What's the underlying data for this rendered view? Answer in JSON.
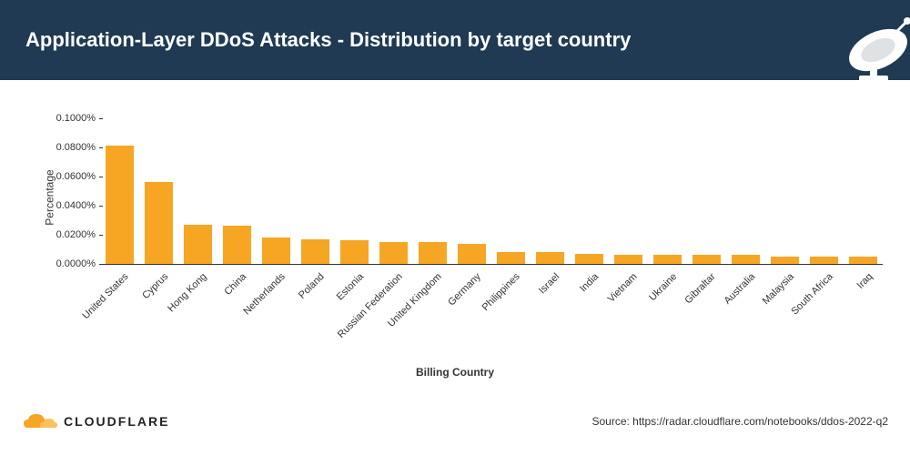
{
  "header": {
    "title": "Application-Layer DDoS Attacks - Distribution by target country",
    "background_color": "#1f3a52",
    "title_color": "#ffffff",
    "title_fontsize": 22
  },
  "chart": {
    "type": "bar",
    "y_axis_label": "Percentage",
    "x_axis_label": "Billing Country",
    "x_axis_fontweight": 600,
    "label_fontsize": 12,
    "tick_fontsize": 11,
    "x_tick_rotation_deg": -45,
    "bar_color": "#f6a623",
    "background_color": "#ffffff",
    "axis_color": "#333333",
    "tick_color": "#333333",
    "ylim": [
      0,
      0.1
    ],
    "ytick_step": 0.02,
    "y_ticks": [
      {
        "value": 0.0,
        "label": "0.0000%"
      },
      {
        "value": 0.02,
        "label": "0.0200%"
      },
      {
        "value": 0.04,
        "label": "0.0400%"
      },
      {
        "value": 0.06,
        "label": "0.0600%"
      },
      {
        "value": 0.08,
        "label": "0.0800%"
      },
      {
        "value": 0.1,
        "label": "0.1000%"
      }
    ],
    "bar_width_ratio": 0.72,
    "categories": [
      "United States",
      "Cyprus",
      "Hong Kong",
      "China",
      "Netherlands",
      "Poland",
      "Estonia",
      "Russian Federation",
      "United Kingdom",
      "Germany",
      "Philippines",
      "Israel",
      "India",
      "Vietnam",
      "Ukraine",
      "Gibraltar",
      "Australia",
      "Malaysia",
      "South Africa",
      "Iraq"
    ],
    "values": [
      0.081,
      0.056,
      0.027,
      0.026,
      0.018,
      0.017,
      0.016,
      0.015,
      0.015,
      0.014,
      0.008,
      0.008,
      0.007,
      0.006,
      0.006,
      0.006,
      0.006,
      0.005,
      0.005,
      0.005
    ]
  },
  "footer": {
    "logo_text": "CLOUDFLARE",
    "logo_color": "#f6a623",
    "source_text": "Source: https://radar.cloudflare.com/notebooks/ddos-2022-q2"
  }
}
